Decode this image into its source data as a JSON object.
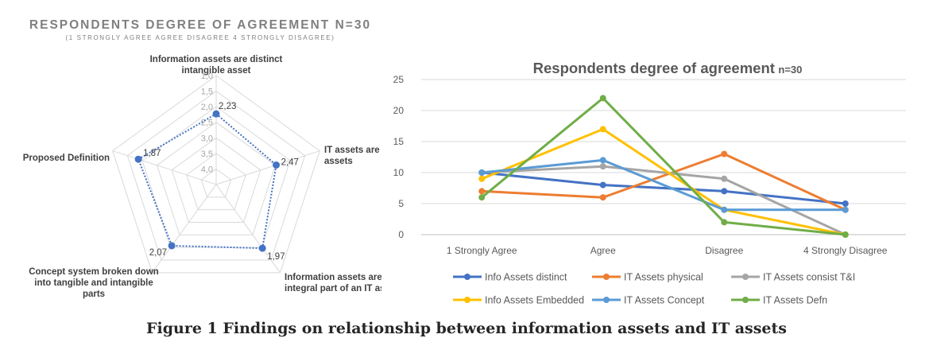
{
  "caption": "Figure 1 Findings on relationship between information assets and IT assets",
  "chart_data": [
    {
      "type": "radar",
      "title": "RESPONDENTS DEGREE OF AGREEMENT N=30",
      "subtitle": "(1 STRONGLY AGREE AGREE DISAGREE 4 STRONGLY DISAGREE)",
      "axes": [
        [
          "Information assets are distinct",
          "intangible asset"
        ],
        [
          "IT assets are physical tangible",
          "assets"
        ],
        [
          "Information assets are an",
          "integral part of an IT asset"
        ],
        [
          "Concept system broken down",
          "into tangible and intangible",
          "parts"
        ],
        [
          "Proposed Definition"
        ]
      ],
      "values": [
        2.23,
        2.47,
        1.97,
        2.07,
        1.87
      ],
      "value_labels": [
        "2,23",
        "2,47",
        "1,97",
        "2,07",
        "1,87"
      ],
      "ticks": [
        1.0,
        1.5,
        2.0,
        2.5,
        3.0,
        3.5,
        4.0
      ],
      "tick_labels": [
        "1,0",
        "1,5",
        "2,0",
        "2,5",
        "3,0",
        "3,5",
        "4,0"
      ],
      "range": [
        1.0,
        4.5
      ],
      "reversed": true,
      "color": "#4472C4"
    },
    {
      "type": "line",
      "title": "Respondents degree of agreement",
      "title_suffix": "n=30",
      "categories": [
        "1 Strongly Agree",
        "Agree",
        "Disagree",
        "4 Strongly Disagree"
      ],
      "ylim": [
        0,
        25
      ],
      "yticks": [
        0,
        5,
        10,
        15,
        20,
        25
      ],
      "grid": true,
      "legend_position": "bottom",
      "series": [
        {
          "name": "Info Assets distinct",
          "color": "#4472C4",
          "values": [
            10,
            8,
            7,
            5
          ]
        },
        {
          "name": "IT Assets physical",
          "color": "#ED7D31",
          "values": [
            7,
            6,
            13,
            4
          ]
        },
        {
          "name": "IT Assets consist T&I",
          "color": "#A5A5A5",
          "values": [
            10,
            11,
            9,
            0
          ]
        },
        {
          "name": "Info Assets Embedded",
          "color": "#FFC000",
          "values": [
            9,
            17,
            4,
            0
          ]
        },
        {
          "name": "IT Assets Concept",
          "color": "#5B9BD5",
          "values": [
            10,
            12,
            4,
            4
          ]
        },
        {
          "name": "IT Assets Defn",
          "color": "#70AD47",
          "values": [
            6,
            22,
            2,
            0
          ]
        }
      ]
    }
  ]
}
